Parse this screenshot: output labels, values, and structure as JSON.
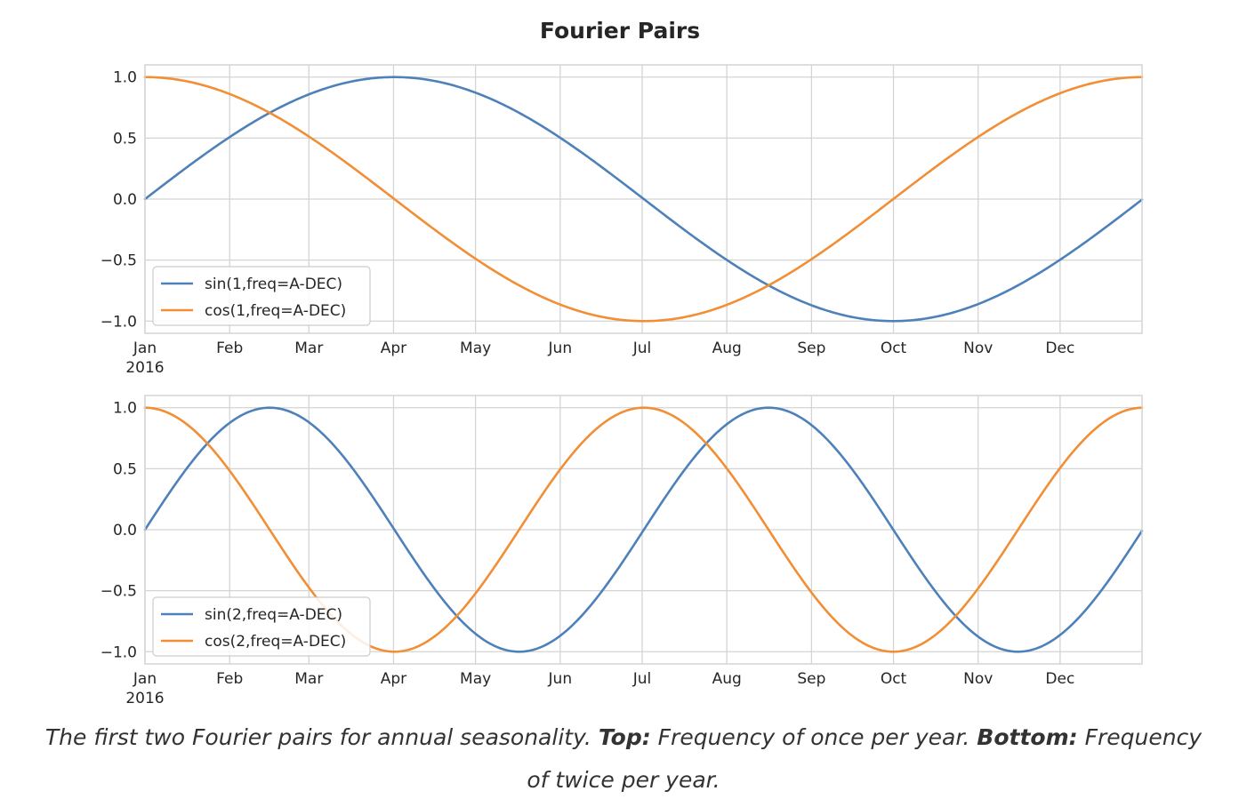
{
  "chart_data": [
    {
      "type": "line",
      "title": "Fourier Pairs",
      "x_axis": "date",
      "x_start": "2016-01-01",
      "x_end": "2016-12-31",
      "xticks": [
        "Jan",
        "Feb",
        "Mar",
        "Apr",
        "May",
        "Jun",
        "Jul",
        "Aug",
        "Sep",
        "Oct",
        "Nov",
        "Dec"
      ],
      "xtick_year": "2016",
      "yticks": [
        "1.0",
        "0.5",
        "0.0",
        "−0.5",
        "−1.0"
      ],
      "ylim": [
        -1.1,
        1.1
      ],
      "grid": true,
      "legend_position": "lower-left",
      "series": [
        {
          "name": "sin(1,freq=A-DEC)",
          "color": "#4e81b9",
          "function": "sin",
          "cycles_per_year": 1
        },
        {
          "name": "cos(1,freq=A-DEC)",
          "color": "#f28e35",
          "function": "cos",
          "cycles_per_year": 1
        }
      ]
    },
    {
      "type": "line",
      "x_axis": "date",
      "x_start": "2016-01-01",
      "x_end": "2016-12-31",
      "xticks": [
        "Jan",
        "Feb",
        "Mar",
        "Apr",
        "May",
        "Jun",
        "Jul",
        "Aug",
        "Sep",
        "Oct",
        "Nov",
        "Dec"
      ],
      "xtick_year": "2016",
      "yticks": [
        "1.0",
        "0.5",
        "0.0",
        "−0.5",
        "−1.0"
      ],
      "ylim": [
        -1.1,
        1.1
      ],
      "grid": true,
      "legend_position": "lower-left",
      "series": [
        {
          "name": "sin(2,freq=A-DEC)",
          "color": "#4e81b9",
          "function": "sin",
          "cycles_per_year": 2
        },
        {
          "name": "cos(2,freq=A-DEC)",
          "color": "#f28e35",
          "function": "cos",
          "cycles_per_year": 2
        }
      ]
    }
  ],
  "caption": {
    "intro": "The first two Fourier pairs for annual seasonality. ",
    "top_label": "Top:",
    "top_text": " Frequency of once per year. ",
    "bottom_label": "Bottom:",
    "bottom_text_line1": " Frequency",
    "bottom_text_line2": "of twice per year."
  }
}
